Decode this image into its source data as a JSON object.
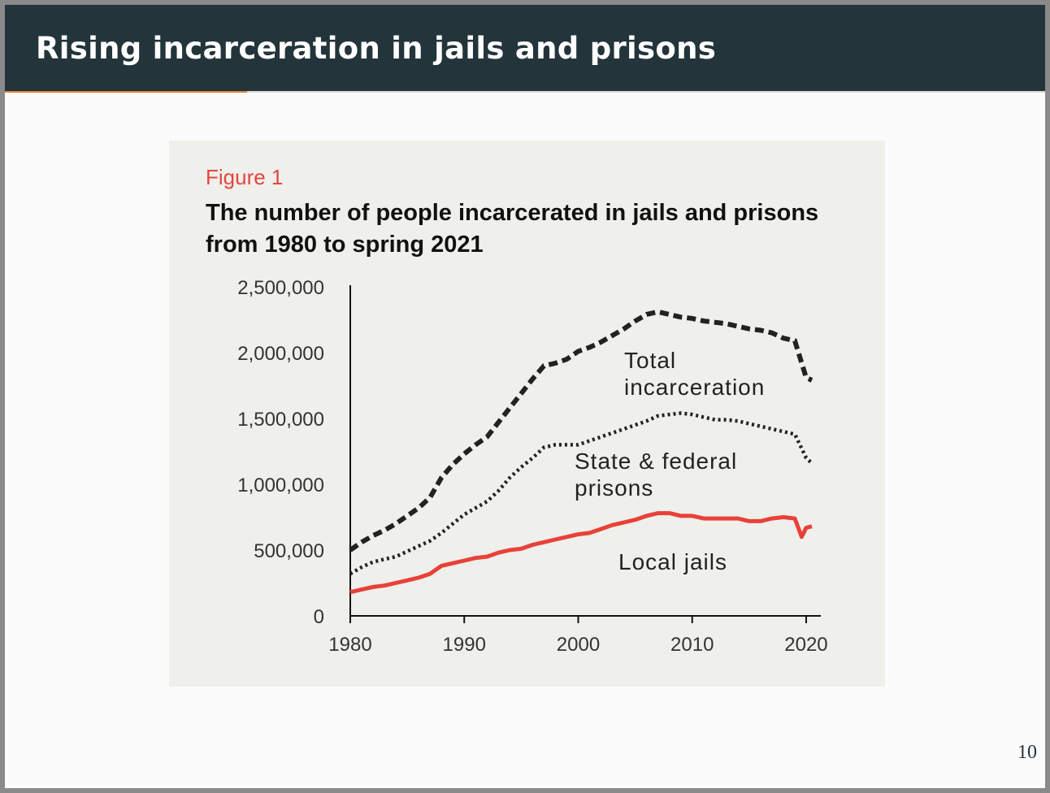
{
  "slide": {
    "title": "Rising incarceration in jails and prisons",
    "page_number": "10"
  },
  "figure": {
    "label": "Figure 1",
    "title": "The number of people incarcerated in jails and prisons from 1980 to spring 2021"
  },
  "colors": {
    "header_bg": "#23343b",
    "accent": "#e0813a",
    "figure_label": "#e2463f",
    "total_line": "#222222",
    "prisons_line": "#222222",
    "jails_line": "#e8413a"
  },
  "chart_data": {
    "type": "line",
    "title": "The number of people incarcerated in jails and prisons from 1980 to spring 2021",
    "xlabel": "",
    "ylabel": "",
    "xlim": [
      1980,
      2021
    ],
    "ylim": [
      0,
      2500000
    ],
    "x_ticks": [
      "1980",
      "1990",
      "2000",
      "2010",
      "2020"
    ],
    "y_ticks": [
      "0",
      "500,000",
      "1,000,000",
      "1,500,000",
      "2,000,000",
      "2,500,000"
    ],
    "grid": false,
    "legend": "inline labels",
    "series": [
      {
        "name": "Total incarceration",
        "style": "dashed",
        "x": [
          1980,
          1981,
          1982,
          1983,
          1984,
          1985,
          1986,
          1987,
          1988,
          1989,
          1990,
          1991,
          1992,
          1993,
          1994,
          1995,
          1996,
          1997,
          1998,
          1999,
          2000,
          2001,
          2002,
          2003,
          2004,
          2005,
          2006,
          2007,
          2008,
          2009,
          2010,
          2011,
          2012,
          2013,
          2014,
          2015,
          2016,
          2017,
          2018,
          2019,
          2020,
          2020.5
        ],
        "y": [
          500000,
          560000,
          610000,
          650000,
          700000,
          760000,
          820000,
          900000,
          1050000,
          1150000,
          1230000,
          1300000,
          1360000,
          1470000,
          1580000,
          1690000,
          1800000,
          1900000,
          1920000,
          1950000,
          2010000,
          2040000,
          2080000,
          2130000,
          2180000,
          2240000,
          2290000,
          2310000,
          2290000,
          2270000,
          2260000,
          2240000,
          2230000,
          2220000,
          2200000,
          2180000,
          2170000,
          2150000,
          2110000,
          2090000,
          1810000,
          1790000
        ]
      },
      {
        "name": "State & federal prisons",
        "style": "dotted",
        "x": [
          1980,
          1981,
          1982,
          1983,
          1984,
          1985,
          1986,
          1987,
          1988,
          1989,
          1990,
          1991,
          1992,
          1993,
          1994,
          1995,
          1996,
          1997,
          1998,
          1999,
          2000,
          2001,
          2002,
          2003,
          2004,
          2005,
          2006,
          2007,
          2008,
          2009,
          2010,
          2011,
          2012,
          2013,
          2014,
          2015,
          2016,
          2017,
          2018,
          2019,
          2020,
          2020.5
        ],
        "y": [
          320000,
          370000,
          410000,
          430000,
          450000,
          490000,
          530000,
          570000,
          630000,
          700000,
          770000,
          820000,
          870000,
          950000,
          1050000,
          1130000,
          1200000,
          1280000,
          1300000,
          1300000,
          1300000,
          1330000,
          1360000,
          1390000,
          1420000,
          1450000,
          1480000,
          1520000,
          1530000,
          1540000,
          1530000,
          1510000,
          1490000,
          1490000,
          1480000,
          1460000,
          1440000,
          1420000,
          1400000,
          1380000,
          1200000,
          1160000
        ]
      },
      {
        "name": "Local jails",
        "style": "solid",
        "x": [
          1980,
          1981,
          1982,
          1983,
          1984,
          1985,
          1986,
          1987,
          1988,
          1989,
          1990,
          1991,
          1992,
          1993,
          1994,
          1995,
          1996,
          1997,
          1998,
          1999,
          2000,
          2001,
          2002,
          2003,
          2004,
          2005,
          2006,
          2007,
          2008,
          2009,
          2010,
          2011,
          2012,
          2013,
          2014,
          2015,
          2016,
          2017,
          2018,
          2019,
          2019.6,
          2020,
          2020.5
        ],
        "y": [
          180000,
          200000,
          220000,
          230000,
          250000,
          270000,
          290000,
          320000,
          380000,
          400000,
          420000,
          440000,
          450000,
          480000,
          500000,
          510000,
          540000,
          560000,
          580000,
          600000,
          620000,
          630000,
          660000,
          690000,
          710000,
          730000,
          760000,
          780000,
          780000,
          760000,
          760000,
          740000,
          740000,
          740000,
          740000,
          720000,
          720000,
          740000,
          750000,
          740000,
          600000,
          670000,
          680000
        ]
      }
    ],
    "annotations": [
      {
        "lines": [
          "Total",
          "incarceration"
        ],
        "series": "Total incarceration"
      },
      {
        "lines": [
          "State & federal",
          "prisons"
        ],
        "series": "State & federal prisons"
      },
      {
        "lines": [
          "Local jails"
        ],
        "series": "Local jails"
      }
    ]
  }
}
